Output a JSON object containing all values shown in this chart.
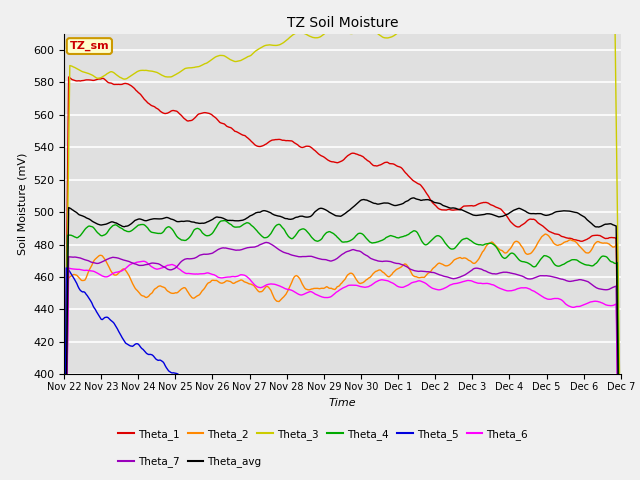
{
  "title": "TZ Soil Moisture",
  "xlabel": "Time",
  "ylabel": "Soil Moisture (mV)",
  "ylim": [
    400,
    610
  ],
  "yticks": [
    400,
    420,
    440,
    460,
    480,
    500,
    520,
    540,
    560,
    580,
    600
  ],
  "fig_bg": "#f0f0f0",
  "ax_bg": "#e0e0e0",
  "legend_box_color": "#ffffcc",
  "legend_box_edge": "#cc9900",
  "annotation_text": "TZ_sm",
  "series_colors": {
    "Theta_1": "#dd0000",
    "Theta_2": "#ff8800",
    "Theta_3": "#cccc00",
    "Theta_4": "#00aa00",
    "Theta_5": "#0000dd",
    "Theta_6": "#ff00ff",
    "Theta_7": "#9900bb",
    "Theta_avg": "#000000"
  },
  "xtick_labels": [
    "Nov 22",
    "Nov 23",
    "Nov 24",
    "Nov 25",
    "Nov 26",
    "Nov 27",
    "Nov 28",
    "Nov 29",
    "Nov 30",
    "Dec 1",
    "Dec 2",
    "Dec 3",
    "Dec 4",
    "Dec 5",
    "Dec 6",
    "Dec 7"
  ],
  "n_ticks": 16,
  "n_points": 480,
  "legend_row1": [
    "Theta_1",
    "Theta_2",
    "Theta_3",
    "Theta_4",
    "Theta_5",
    "Theta_6"
  ],
  "legend_row2": [
    "Theta_7",
    "Theta_avg"
  ]
}
